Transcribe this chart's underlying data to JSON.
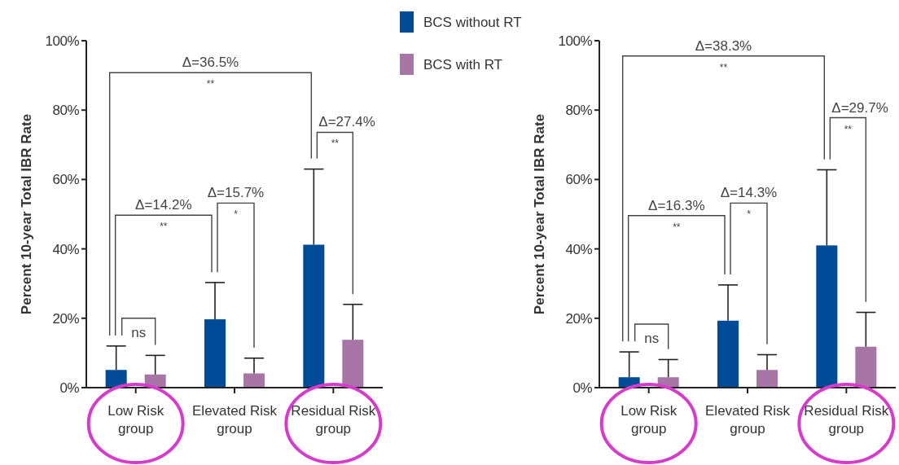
{
  "chart_data": [
    {
      "type": "bar",
      "ylabel": "Percent 10-year Total IBR Rate",
      "categories": [
        "Low Risk group",
        "Elevated Risk group",
        "Residual Risk group"
      ],
      "series": [
        {
          "name": "BCS without RT",
          "color": "#004b97",
          "values": [
            5.1,
            19.7,
            41.2
          ],
          "errors": [
            [
              5.1,
              12.0
            ],
            [
              19.7,
              30.3
            ],
            [
              41.2,
              63.0
            ]
          ]
        },
        {
          "name": "BCS with RT",
          "color": "#a776a6",
          "values": [
            3.8,
            4.1,
            13.8
          ],
          "errors": [
            [
              3.8,
              9.3
            ],
            [
              4.1,
              8.5
            ],
            [
              13.8,
              24.0
            ]
          ]
        }
      ],
      "ylim": [
        0,
        100
      ],
      "yticks": [
        {
          "value": 0,
          "label": "0%"
        },
        {
          "value": 20,
          "label": "20%"
        },
        {
          "value": 40,
          "label": "40%"
        },
        {
          "value": 60,
          "label": "60%"
        },
        {
          "value": 80,
          "label": "80%"
        },
        {
          "value": 100,
          "label": "100%"
        }
      ],
      "grid": false,
      "legend": "top right",
      "annotations": [
        "Δ=36.5%",
        "**",
        "Δ=27.4%",
        "**",
        "Δ=14.2%",
        "**",
        "Δ=15.7%",
        "*",
        "ns"
      ]
    },
    {
      "type": "bar",
      "ylabel": "Percent 10-year Total IBR Rate",
      "categories": [
        "Low Risk group",
        "Elevated Risk group",
        "Residual Risk group"
      ],
      "series": [
        {
          "color": "#004b97",
          "values": [
            3.0,
            19.3,
            41.0
          ],
          "errors": [
            [
              3.0,
              10.3
            ],
            [
              19.3,
              29.6
            ],
            [
              41.0,
              62.8
            ]
          ]
        },
        {
          "color": "#a776a6",
          "values": [
            3.0,
            5.1,
            11.8
          ],
          "errors": [
            [
              3.0,
              8.1
            ],
            [
              5.1,
              9.5
            ],
            [
              11.8,
              21.7
            ]
          ]
        }
      ],
      "ylim": [
        0,
        100
      ],
      "yticks": [
        {
          "value": 0,
          "label": "0%"
        },
        {
          "value": 20,
          "label": "20%"
        },
        {
          "value": 40,
          "label": "40%"
        },
        {
          "value": 60,
          "label": "60%"
        },
        {
          "value": 80,
          "label": "80%"
        },
        {
          "value": 100,
          "label": "100%"
        }
      ],
      "grid": false,
      "legend": false,
      "annotations": [
        "Δ=38.3%",
        "**",
        "Δ=29.7%",
        "**",
        "Δ=16.3%",
        "**",
        "Δ=14.3%",
        "*",
        "ns"
      ]
    }
  ]
}
